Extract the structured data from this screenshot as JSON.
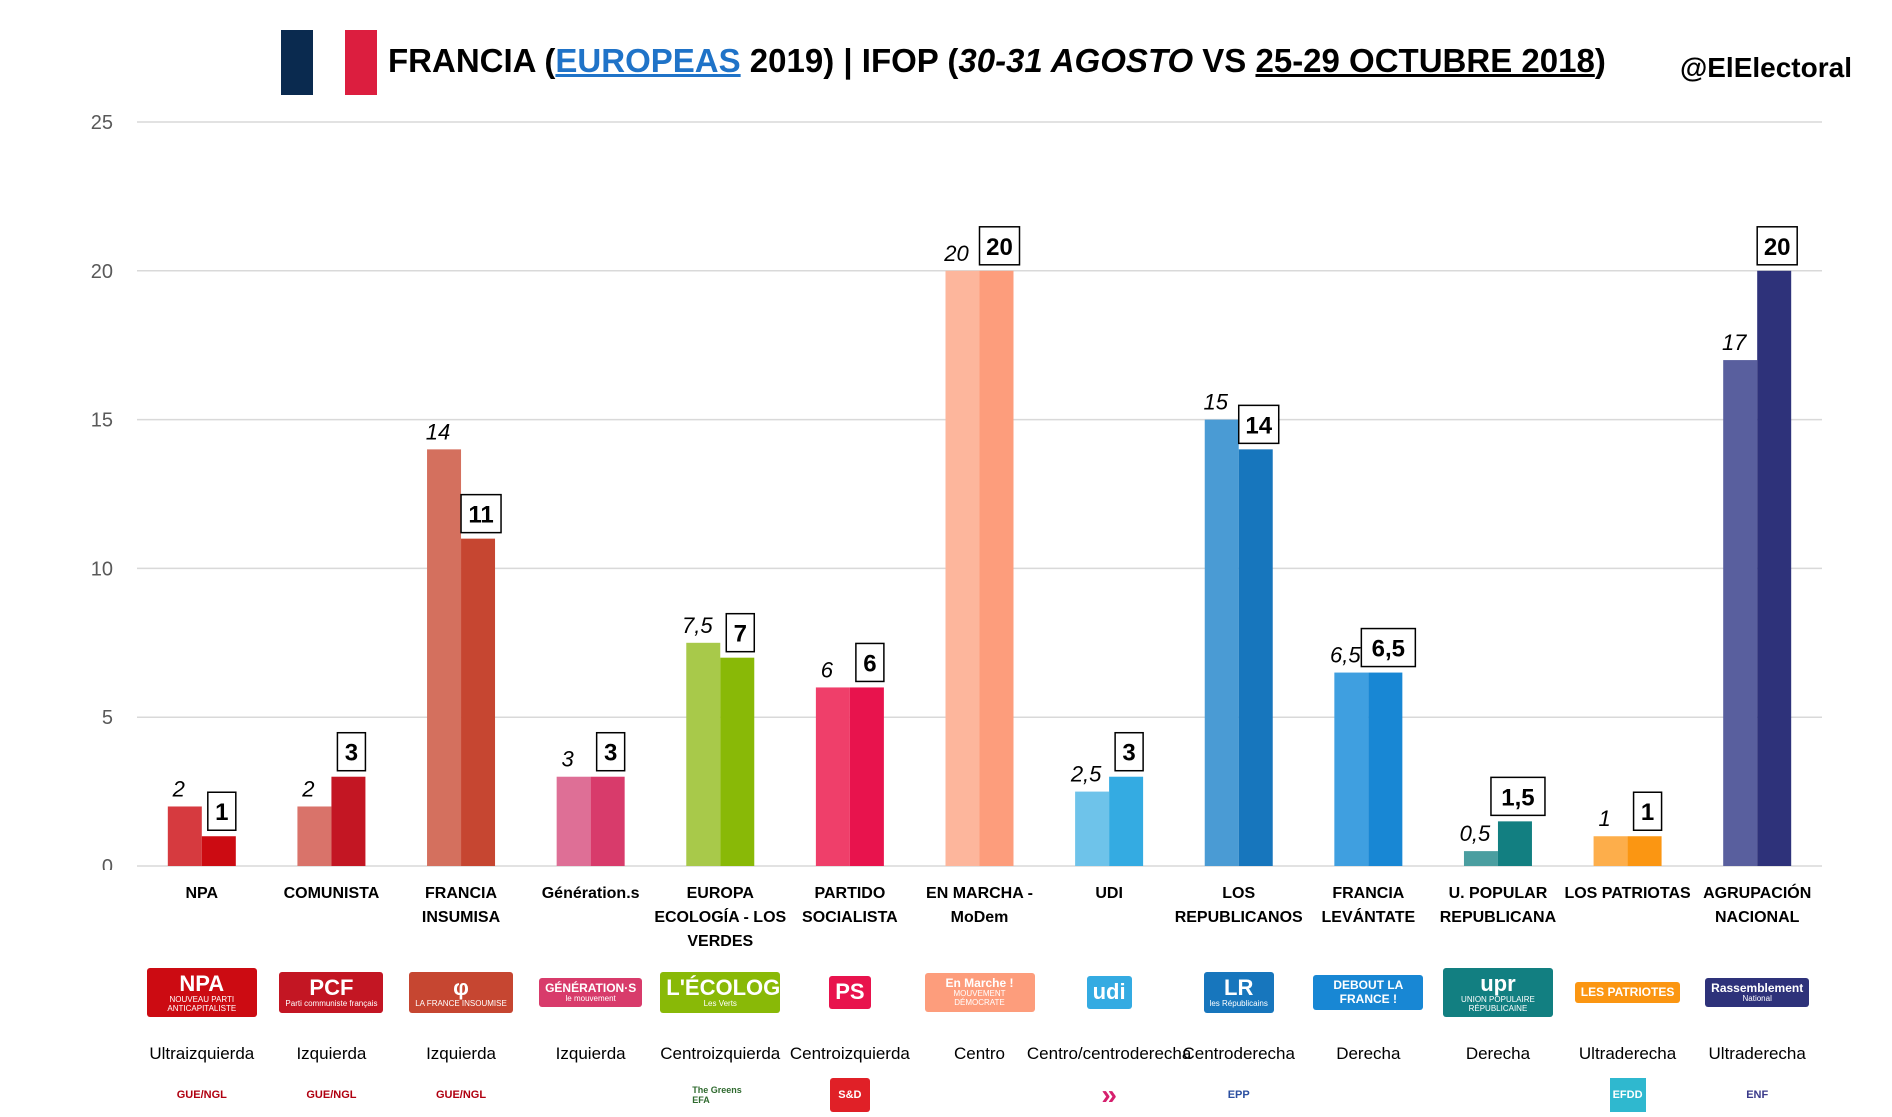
{
  "header": {
    "title_prefix": "FRANCIA (",
    "title_link": "EUROPEAS",
    "title_mid1": " 2019) | IFOP (",
    "title_italic": "30-31 AGOSTO",
    "title_mid2": " VS ",
    "title_underlined": "25-29 OCTUBRE 2018",
    "title_suffix": ")",
    "handle": "@ElElectoral"
  },
  "chart_data": {
    "type": "bar",
    "ylim": [
      0,
      25
    ],
    "yticks": [
      "0",
      "5",
      "10",
      "15",
      "20",
      "25"
    ],
    "grid": true,
    "categories": [
      "NPA",
      "COMUNISTA",
      "FRANCIA INSUMISA",
      "Génération.s",
      "EUROPA ECOLOGÍA - LOS VERDES",
      "PARTIDO SOCIALISTA",
      "EN MARCHA - MoDem",
      "UDI",
      "LOS REPUBLICANOS",
      "FRANCIA LEVÁNTATE",
      "U. POPULAR REPUBLICANA",
      "LOS PATRIOTAS",
      "AGRUPACIÓN NACIONAL"
    ],
    "category_lines": [
      [
        "NPA"
      ],
      [
        "COMUNISTA"
      ],
      [
        "FRANCIA",
        "INSUMISA"
      ],
      [
        "Génération.s"
      ],
      [
        "EUROPA",
        "ECOLOGÍA - LOS",
        "VERDES"
      ],
      [
        "PARTIDO",
        "SOCIALISTA"
      ],
      [
        "EN MARCHA -",
        "MoDem"
      ],
      [
        "UDI"
      ],
      [
        "LOS",
        "REPUBLICANOS"
      ],
      [
        "FRANCIA",
        "LEVÁNTATE"
      ],
      [
        "U. POPULAR",
        "REPUBLICANA"
      ],
      [
        "LOS PATRIOTAS"
      ],
      [
        "AGRUPACIÓN",
        "NACIONAL"
      ]
    ],
    "series": [
      {
        "values": [
          2,
          2,
          14,
          3,
          7.5,
          6,
          20,
          2.5,
          15,
          6.5,
          0.5,
          1,
          17
        ],
        "labels": [
          "2",
          "2",
          "14",
          "3",
          "7,5",
          "6",
          "20",
          "2,5",
          "15",
          "6,5",
          "0,5",
          "1",
          "17"
        ]
      },
      {
        "values": [
          1,
          3,
          11,
          3,
          7,
          6,
          20,
          3,
          14,
          6.5,
          1.5,
          1,
          20
        ],
        "labels": [
          "1",
          "3",
          "11",
          "3",
          "7",
          "6",
          "20",
          "3",
          "14",
          "6,5",
          "1,5",
          "1",
          "20"
        ]
      }
    ],
    "colors_prev": [
      "#d63a3f",
      "#d9736a",
      "#d4705e",
      "#de6f96",
      "#a8c94a",
      "#ef3f6a",
      "#fdb69c",
      "#6ec3ea",
      "#4a9bd4",
      "#3f9fe0",
      "#4a9ea0",
      "#fdae4b",
      "#595f9e"
    ],
    "colors_new": [
      "#cc0b12",
      "#c31623",
      "#c64631",
      "#d83b6b",
      "#89b907",
      "#e8134d",
      "#fd9d7c",
      "#34abe2",
      "#1776bd",
      "#1887d4",
      "#127f81",
      "#fb9612",
      "#2e327a"
    ]
  },
  "ideologies": [
    "Ultraizquierda",
    "Izquierda",
    "Izquierda",
    "Izquierda",
    "Centroizquierda",
    "Centroizquierda",
    "Centro",
    "Centro/centroderecha",
    "Centroderecha",
    "Derecha",
    "Derecha",
    "Ultraderecha",
    "Ultraderecha"
  ],
  "logos": [
    {
      "main": "NPA",
      "sub": "NOUVEAU PARTI ANTICAPITALISTE"
    },
    {
      "main": "PCF",
      "sub": "Parti communiste français"
    },
    {
      "main": "φ",
      "sub": "LA FRANCE INSOUMISE"
    },
    {
      "main": "GÉNÉRATION·S",
      "sub": "le mouvement"
    },
    {
      "main": "L'ÉCOLOGIE",
      "sub": "Les Verts"
    },
    {
      "main": "PS",
      "sub": ""
    },
    {
      "main": "En Marche !",
      "sub": "MOUVEMENT DÉMOCRATE"
    },
    {
      "main": "udi",
      "sub": ""
    },
    {
      "main": "LR",
      "sub": "les Républicains"
    },
    {
      "main": "DEBOUT LA FRANCE !",
      "sub": ""
    },
    {
      "main": "upr",
      "sub": "UNION POPULAIRE RÉPUBLICAINE"
    },
    {
      "main": "LES PATRIOTES",
      "sub": ""
    },
    {
      "main": "Rassemblement",
      "sub": "National"
    }
  ],
  "groups": [
    "GUE/NGL",
    "GUE/NGL",
    "GUE/NGL",
    "",
    "The Greens EFA",
    "S&D",
    "",
    "»",
    "EPP",
    "",
    "",
    "EFDD",
    "ENF"
  ]
}
